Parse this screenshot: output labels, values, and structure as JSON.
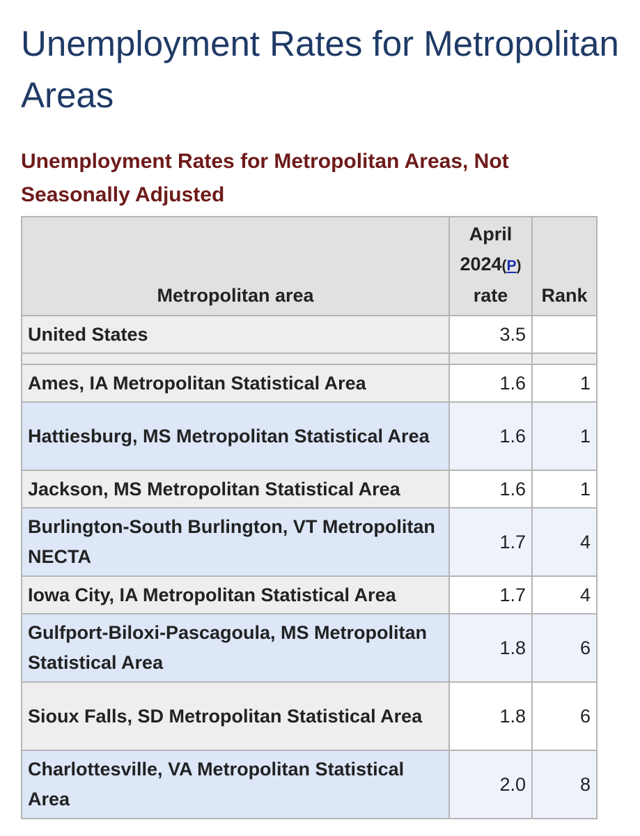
{
  "page": {
    "title": "Unemployment Rates for Metropolitan Areas",
    "table_title": "Unemployment Rates for Metropolitan Areas, Not Seasonally Adjusted"
  },
  "table": {
    "headers": {
      "area": "Metropolitan area",
      "rate_line1": "April",
      "rate_line2": "2024",
      "rate_open_paren": "(",
      "rate_link": "P",
      "rate_close_paren": ")",
      "rate_line3": "rate",
      "rank": "Rank"
    },
    "national": {
      "area": "United States",
      "rate": "3.5",
      "rank": ""
    },
    "rows": [
      {
        "area": "Ames, IA Metropolitan Statistical Area",
        "rate": "1.6",
        "rank": "1"
      },
      {
        "area": "Hattiesburg, MS Metropolitan Statistical Area",
        "rate": "1.6",
        "rank": "1"
      },
      {
        "area": "Jackson, MS Metropolitan Statistical Area",
        "rate": "1.6",
        "rank": "1"
      },
      {
        "area": "Burlington-South Burlington, VT Metropolitan NECTA",
        "rate": "1.7",
        "rank": "4"
      },
      {
        "area": "Iowa City, IA Metropolitan Statistical Area",
        "rate": "1.7",
        "rank": "4"
      },
      {
        "area": "Gulfport-Biloxi-Pascagoula, MS Metropolitan Statistical Area",
        "rate": "1.8",
        "rank": "6"
      },
      {
        "area": "Sioux Falls, SD Metropolitan Statistical Area",
        "rate": "1.8",
        "rank": "6"
      },
      {
        "area": "Charlottesville, VA Metropolitan Statistical Area",
        "rate": "2.0",
        "rank": "8"
      }
    ]
  }
}
